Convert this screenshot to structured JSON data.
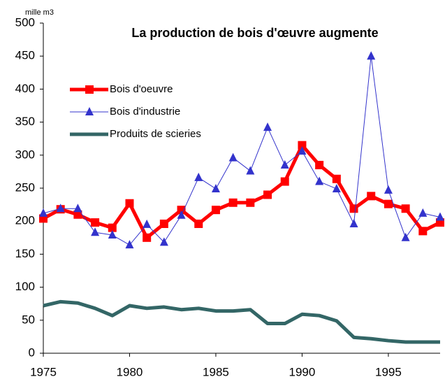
{
  "chart_data": {
    "type": "line",
    "title": "La production de bois d'œuvre augmente",
    "y_label": "mille m3",
    "x": [
      1975,
      1976,
      1977,
      1978,
      1979,
      1980,
      1981,
      1982,
      1983,
      1984,
      1985,
      1986,
      1987,
      1988,
      1989,
      1990,
      1991,
      1992,
      1993,
      1994,
      1995,
      1996,
      1997,
      1998
    ],
    "series": [
      {
        "name": "Bois d'oeuvre",
        "color": "#ff0000",
        "marker": "square",
        "values": [
          204,
          218,
          210,
          198,
          190,
          227,
          175,
          196,
          217,
          196,
          217,
          228,
          228,
          240,
          260,
          315,
          285,
          264,
          219,
          238,
          226,
          219,
          185,
          198
        ]
      },
      {
        "name": "Bois d'industrie",
        "color": "#3333cc",
        "marker": "triangle",
        "values": [
          212,
          219,
          219,
          183,
          179,
          164,
          195,
          168,
          209,
          266,
          249,
          296,
          276,
          342,
          285,
          306,
          260,
          249,
          196,
          450,
          247,
          175,
          212,
          206
        ]
      },
      {
        "name": "Produits de scieries",
        "color": "#336666",
        "marker": "none",
        "values": [
          72,
          78,
          76,
          68,
          57,
          72,
          68,
          70,
          66,
          68,
          64,
          64,
          66,
          45,
          45,
          59,
          57,
          49,
          24,
          22,
          19,
          17,
          17,
          17
        ]
      }
    ],
    "xlim": [
      1975,
      1998
    ],
    "xticks": [
      1975,
      1980,
      1985,
      1990,
      1995
    ],
    "ylim": [
      0,
      500
    ],
    "yticks": [
      0,
      50,
      100,
      150,
      200,
      250,
      300,
      350,
      400,
      450,
      500
    ],
    "grid": false,
    "legend": "upper left"
  }
}
